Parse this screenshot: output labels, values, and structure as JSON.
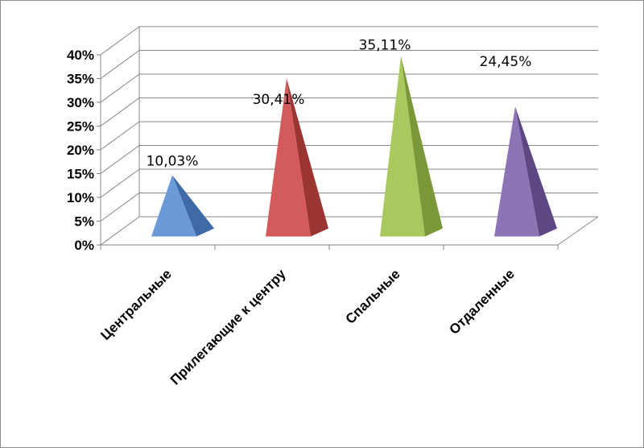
{
  "chart_data": {
    "type": "bar",
    "bar_shape": "pyramid",
    "categories": [
      "Центральные",
      "Прилегающие к центру",
      "Спальные",
      "Отдаленные"
    ],
    "values": [
      10.03,
      30.41,
      35.11,
      24.45
    ],
    "data_labels": [
      "10,03%",
      "30,41%",
      "35,11%",
      "24,45%"
    ],
    "ytick_labels": [
      "0%",
      "5%",
      "10%",
      "15%",
      "20%",
      "25%",
      "30%",
      "35%",
      "40%"
    ],
    "ylim": [
      0,
      40
    ],
    "grid": true,
    "legend": "none",
    "colors": [
      "#6a9bd8",
      "#d45b5b",
      "#a9c95e",
      "#8e74b4"
    ],
    "shade_colors": [
      "#3e6aa6",
      "#9b3534",
      "#7a9838",
      "#5d4784"
    ]
  }
}
